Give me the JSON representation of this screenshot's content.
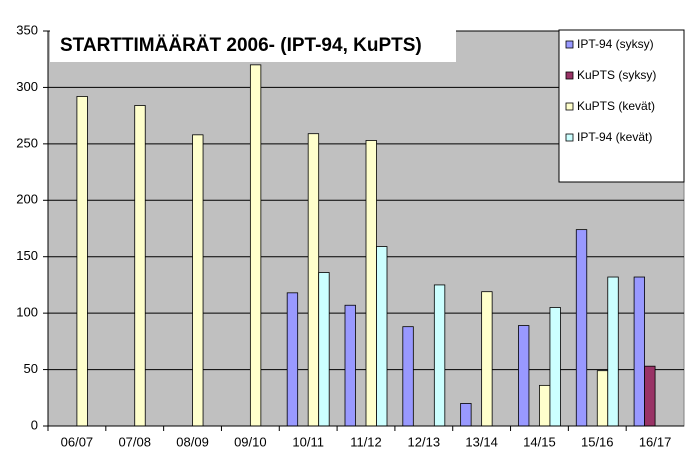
{
  "chart_data": {
    "type": "bar",
    "title": "STARTTIMÄÄRÄT 2006- (IPT-94, KuPTS)",
    "categories": [
      "06/07",
      "07/08",
      "08/09",
      "09/10",
      "10/11",
      "11/12",
      "12/13",
      "13/14",
      "14/15",
      "15/16",
      "16/17"
    ],
    "series": [
      {
        "name": "IPT-94 (syksy)",
        "color": "#9999ff",
        "values": [
          null,
          null,
          null,
          null,
          118,
          107,
          88,
          20,
          89,
          174,
          132
        ]
      },
      {
        "name": "KuPTS (syksy)",
        "color": "#993366",
        "values": [
          null,
          null,
          null,
          null,
          null,
          null,
          null,
          null,
          null,
          null,
          53
        ]
      },
      {
        "name": "KuPTS (kevät)",
        "color": "#ffffcc",
        "values": [
          292,
          284,
          258,
          320,
          259,
          253,
          null,
          119,
          36,
          49,
          null
        ]
      },
      {
        "name": "IPT-94 (kevät)",
        "color": "#ccffff",
        "values": [
          null,
          null,
          null,
          null,
          136,
          159,
          125,
          null,
          105,
          132,
          null
        ]
      }
    ],
    "ylim": [
      0,
      350
    ],
    "yticks": [
      0,
      50,
      100,
      150,
      200,
      250,
      300,
      350
    ],
    "grid": true
  }
}
